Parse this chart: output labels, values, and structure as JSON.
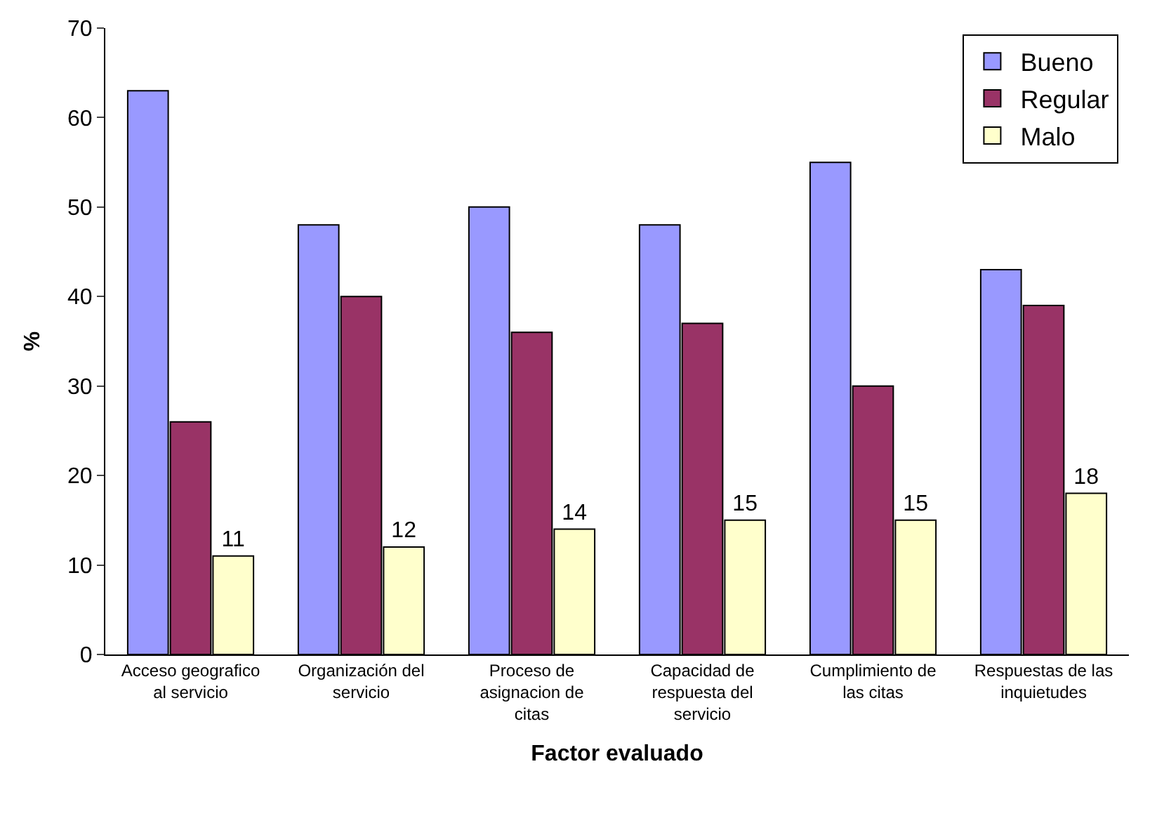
{
  "chart_data": {
    "type": "bar",
    "xlabel": "Factor evaluado",
    "ylabel": "%",
    "categories": [
      "Acceso geografico al servicio",
      "Organización del servicio",
      "Proceso de asignacion de citas",
      "Capacidad de respuesta del servicio",
      "Cumplimiento de las citas",
      "Respuestas de las inquietudes"
    ],
    "series": [
      {
        "name": "Bueno",
        "color": "#9999ff",
        "values": [
          63,
          48,
          50,
          48,
          55,
          43
        ]
      },
      {
        "name": "Regular",
        "color": "#993366",
        "values": [
          26,
          40,
          36,
          37,
          30,
          39
        ]
      },
      {
        "name": "Malo",
        "color": "#ffffcc",
        "values": [
          11,
          12,
          14,
          15,
          15,
          18
        ],
        "value_labels": [
          "11",
          "12",
          "14",
          "15",
          "15",
          "18"
        ]
      }
    ],
    "ylim": [
      0,
      70
    ],
    "yticks": [
      0,
      10,
      20,
      30,
      40,
      50,
      60,
      70
    ],
    "legend": "top right"
  }
}
